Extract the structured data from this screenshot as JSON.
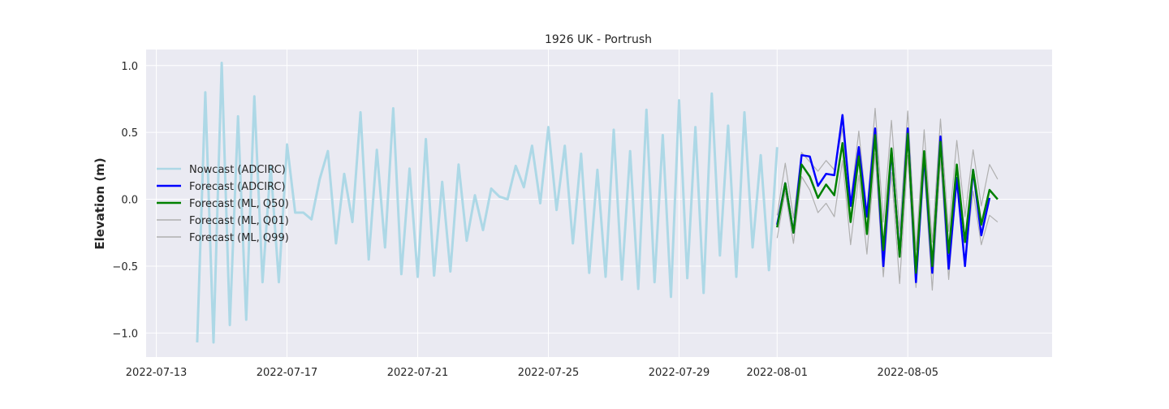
{
  "chart_data": {
    "type": "line",
    "title": "1926 UK - Portrush",
    "xlabel": "",
    "ylabel": "Elevation (m)",
    "x_range": [
      "2022-07-12T16:30",
      "2022-08-09T10:00"
    ],
    "ylim": [
      -1.18,
      1.12
    ],
    "x_ticks": [
      "2022-07-13",
      "2022-07-17",
      "2022-07-21",
      "2022-07-25",
      "2022-07-29",
      "2022-08-01",
      "2022-08-05"
    ],
    "y_ticks": [
      -1.0,
      -0.5,
      0.0,
      0.5,
      1.0
    ],
    "y_tick_labels": [
      "−1.0",
      "−0.5",
      "0.0",
      "0.5",
      "1.0"
    ],
    "grid": true,
    "legend_position": "center-left",
    "background": "#eaeaf2",
    "series": [
      {
        "name": "Nowcast (ADCIRC)",
        "color": "#add8e6",
        "start": "2022-07-14T06:00",
        "step_hours": 6,
        "values": [
          -1.07,
          0.8,
          -1.07,
          1.02,
          -0.94,
          0.62,
          -0.9,
          0.77,
          -0.62,
          0.25,
          -0.62,
          0.41,
          -0.1,
          -0.1,
          -0.15,
          0.15,
          0.36,
          -0.33,
          0.19,
          -0.17,
          0.65,
          -0.45,
          0.37,
          -0.36,
          0.68,
          -0.56,
          0.23,
          -0.58,
          0.45,
          -0.57,
          0.13,
          -0.54,
          0.26,
          -0.31,
          0.03,
          -0.23,
          0.08,
          0.02,
          0.0,
          0.25,
          0.09,
          0.4,
          -0.03,
          0.54,
          -0.08,
          0.4,
          -0.33,
          0.34,
          -0.55,
          0.22,
          -0.58,
          0.52,
          -0.6,
          0.36,
          -0.67,
          0.67,
          -0.62,
          0.48,
          -0.73,
          0.74,
          -0.59,
          0.54,
          -0.7,
          0.79,
          -0.42,
          0.55,
          -0.58,
          0.65,
          -0.36,
          0.33,
          -0.53,
          0.39
        ]
      },
      {
        "name": "Forecast (ADCIRC)",
        "color": "#0000ff",
        "start": "2022-08-01T00:00",
        "step_hours": 6,
        "values": [
          -0.19,
          0.12,
          -0.25,
          0.33,
          0.32,
          0.1,
          0.19,
          0.18,
          0.63,
          -0.05,
          0.39,
          -0.13,
          0.53,
          -0.5,
          0.37,
          -0.42,
          0.53,
          -0.62,
          0.33,
          -0.55,
          0.47,
          -0.52,
          0.16,
          -0.5,
          0.22,
          -0.27,
          0.01
        ]
      },
      {
        "name": "Forecast (ML, Q50)",
        "color": "#008000",
        "start": "2022-08-01T00:00",
        "step_hours": 6,
        "values": [
          -0.21,
          0.12,
          -0.25,
          0.26,
          0.17,
          0.01,
          0.11,
          0.03,
          0.42,
          -0.17,
          0.32,
          -0.26,
          0.48,
          -0.38,
          0.38,
          -0.43,
          0.49,
          -0.55,
          0.36,
          -0.5,
          0.43,
          -0.4,
          0.26,
          -0.32,
          0.22,
          -0.19,
          0.07,
          0.0
        ]
      },
      {
        "name": "Forecast (ML, Q01)",
        "color": "#b0b0b0",
        "start": "2022-08-01T00:00",
        "step_hours": 6,
        "values": [
          -0.29,
          0.06,
          -0.33,
          0.17,
          0.07,
          -0.1,
          -0.03,
          -0.13,
          0.29,
          -0.34,
          0.18,
          -0.41,
          0.34,
          -0.58,
          0.2,
          -0.63,
          0.33,
          -0.66,
          0.23,
          -0.68,
          0.3,
          -0.6,
          0.13,
          -0.47,
          0.06,
          -0.34,
          -0.12,
          -0.17
        ]
      },
      {
        "name": "Forecast (ML, Q99)",
        "color": "#b0b0b0",
        "start": "2022-08-01T00:00",
        "step_hours": 6,
        "values": [
          -0.12,
          0.27,
          -0.14,
          0.35,
          0.28,
          0.21,
          0.29,
          0.22,
          0.53,
          -0.02,
          0.51,
          -0.1,
          0.68,
          -0.17,
          0.59,
          -0.24,
          0.66,
          -0.38,
          0.52,
          -0.32,
          0.6,
          -0.24,
          0.44,
          -0.13,
          0.37,
          -0.05,
          0.26,
          0.15
        ]
      }
    ]
  }
}
